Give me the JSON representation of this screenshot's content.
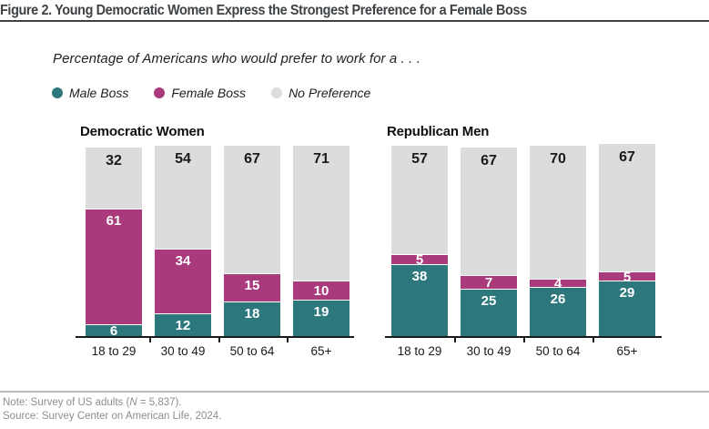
{
  "figure": {
    "title": "Figure 2. Young Democratic Women Express the Strongest Preference for a Female Boss",
    "subtitle": "Percentage of Americans who would prefer to work for a . . .",
    "note": {
      "prefix": "Note: Survey of US adults (",
      "n": "N",
      "suffix": " = 5,837)."
    },
    "source": "Source: Survey Center on American Life, 2024."
  },
  "legend": {
    "items": [
      {
        "label": "Male Boss",
        "color": "#2d787d"
      },
      {
        "label": "Female Boss",
        "color": "#a93b7c"
      },
      {
        "label": "No Preference",
        "color": "#dcdcdc"
      }
    ]
  },
  "chart_data": {
    "type": "bar",
    "stacked": true,
    "unit": "percent",
    "grid": false,
    "legend_position": "top",
    "value_labels": "inside-segments",
    "ylim": [
      0,
      101
    ],
    "categories": [
      "18 to 29",
      "30 to 49",
      "50 to 64",
      "65+"
    ],
    "colors": {
      "Male Boss": "#2d787d",
      "Female Boss": "#a93b7c",
      "No Preference": "#dcdcdc"
    },
    "label_colors": {
      "Male Boss": "#ffffff",
      "Female Boss": "#ffffff",
      "No Preference": "#1a1a1a"
    },
    "groups": [
      {
        "title": "Democratic Women",
        "series": [
          {
            "name": "Male Boss",
            "values": [
              6,
              12,
              18,
              19
            ]
          },
          {
            "name": "Female Boss",
            "values": [
              61,
              34,
              15,
              10
            ]
          },
          {
            "name": "No Preference",
            "values": [
              32,
              54,
              67,
              71
            ]
          }
        ]
      },
      {
        "title": "Republican Men",
        "series": [
          {
            "name": "Male Boss",
            "values": [
              38,
              25,
              26,
              29
            ]
          },
          {
            "name": "Female Boss",
            "values": [
              5,
              7,
              4,
              5
            ]
          },
          {
            "name": "No Preference",
            "values": [
              57,
              67,
              70,
              67
            ]
          }
        ]
      }
    ]
  }
}
